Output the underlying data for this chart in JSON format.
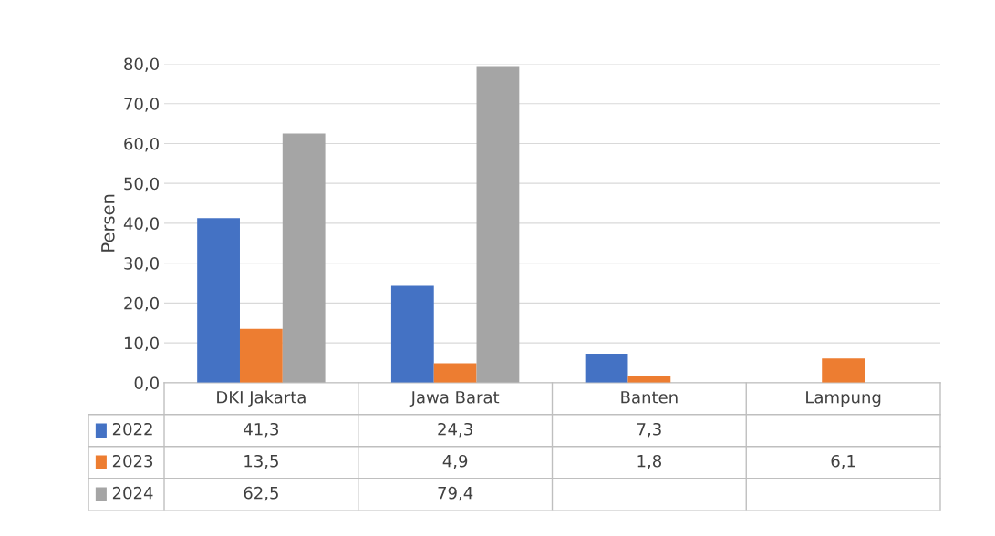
{
  "chart_data": {
    "type": "bar",
    "ylabel": "Persen",
    "categories": [
      "DKI Jakarta",
      "Jawa Barat",
      "Banten",
      "Lampung"
    ],
    "series": [
      {
        "name": "2022",
        "color": "#4472c4",
        "values": [
          41.3,
          24.3,
          7.3,
          null
        ],
        "value_labels": [
          "41,3",
          "24,3",
          "7,3",
          null
        ]
      },
      {
        "name": "2023",
        "color": "#ed7d31",
        "values": [
          13.5,
          4.9,
          1.8,
          6.1
        ],
        "value_labels": [
          "13,5",
          "4,9",
          "1,8",
          "6,1"
        ]
      },
      {
        "name": "2024",
        "color": "#a5a5a5",
        "values": [
          62.5,
          79.4,
          null,
          null
        ],
        "value_labels": [
          "62,5",
          "79,4",
          null,
          null
        ]
      }
    ],
    "ylim": [
      0,
      80
    ],
    "yticks": [
      {
        "value": 0,
        "label": "0,0"
      },
      {
        "value": 10,
        "label": "10,0"
      },
      {
        "value": 20,
        "label": "20,0"
      },
      {
        "value": 30,
        "label": "30,0"
      },
      {
        "value": 40,
        "label": "40,0"
      },
      {
        "value": 50,
        "label": "50,0"
      },
      {
        "value": 60,
        "label": "60,0"
      },
      {
        "value": 70,
        "label": "70,0"
      },
      {
        "value": 80,
        "label": "80,0"
      }
    ],
    "grid": "y",
    "legend": "bottom left"
  }
}
